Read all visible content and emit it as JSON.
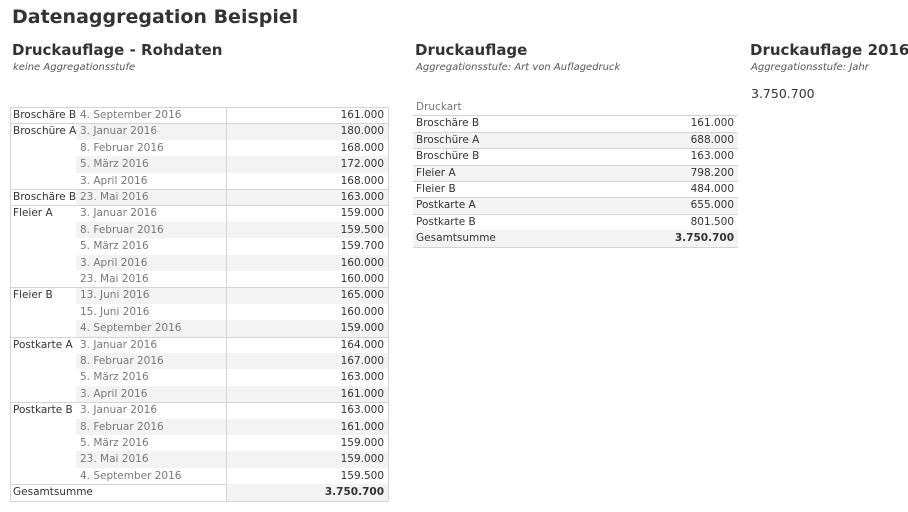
{
  "title": "Datenaggregation Beispiel",
  "left": {
    "title": "Druckauflage - Rohdaten",
    "subtitle": "keine Aggregationsstufe",
    "groups": [
      {
        "label": "Broschäre B",
        "rows": [
          {
            "date": "4. September 2016",
            "value": "161.000"
          }
        ]
      },
      {
        "label": "Broschüre A",
        "rows": [
          {
            "date": "3. Januar 2016",
            "value": "180.000"
          },
          {
            "date": "8. Februar 2016",
            "value": "168.000"
          },
          {
            "date": "5. März 2016",
            "value": "172.000"
          },
          {
            "date": "3. April 2016",
            "value": "168.000"
          }
        ]
      },
      {
        "label": "Broschäre B",
        "rows": [
          {
            "date": "23. Mai 2016",
            "value": "163.000"
          }
        ]
      },
      {
        "label": "Fleier A",
        "rows": [
          {
            "date": "3. Januar 2016",
            "value": "159.000"
          },
          {
            "date": "8. Februar 2016",
            "value": "159.500"
          },
          {
            "date": "5. März 2016",
            "value": "159.700"
          },
          {
            "date": "3. April 2016",
            "value": "160.000"
          },
          {
            "date": "23. Mai 2016",
            "value": "160.000"
          }
        ]
      },
      {
        "label": "Fleier B",
        "rows": [
          {
            "date": "13. Juni 2016",
            "value": "165.000"
          },
          {
            "date": "15. Juni 2016",
            "value": "160.000"
          },
          {
            "date": "4. September 2016",
            "value": "159.000"
          }
        ]
      },
      {
        "label": "Postkarte A",
        "rows": [
          {
            "date": "3. Januar 2016",
            "value": "164.000"
          },
          {
            "date": "8. Februar 2016",
            "value": "167.000"
          },
          {
            "date": "5. März 2016",
            "value": "163.000"
          },
          {
            "date": "3. April 2016",
            "value": "161.000"
          }
        ]
      },
      {
        "label": "Postkarte B",
        "rows": [
          {
            "date": "3. Januar 2016",
            "value": "163.000"
          },
          {
            "date": "8. Februar 2016",
            "value": "161.000"
          },
          {
            "date": "5. März 2016",
            "value": "159.000"
          },
          {
            "date": "23. Mai 2016",
            "value": "159.000"
          },
          {
            "date": "4. September 2016",
            "value": "159.500"
          }
        ]
      }
    ],
    "total": {
      "label": "Gesamtsumme",
      "value": "3.750.700"
    }
  },
  "middle": {
    "title": "Druckauflage",
    "subtitle": "Aggregationsstufe: Art von Auflagedruck",
    "header": "Druckart",
    "rows": [
      {
        "label": "Broschäre B",
        "value": "161.000"
      },
      {
        "label": "Broschüre A",
        "value": "688.000"
      },
      {
        "label": "Broschüre B",
        "value": "163.000"
      },
      {
        "label": "Fleier A",
        "value": "798.200"
      },
      {
        "label": "Fleier B",
        "value": "484.000"
      },
      {
        "label": "Postkarte A",
        "value": "655.000"
      },
      {
        "label": "Postkarte B",
        "value": "801.500"
      }
    ],
    "total": {
      "label": "Gesamtsumme",
      "value": "3.750.700"
    }
  },
  "right": {
    "title": "Druckauflage 2016",
    "subtitle": "Aggregationsstufe: Jahr",
    "value": "3.750.700"
  }
}
